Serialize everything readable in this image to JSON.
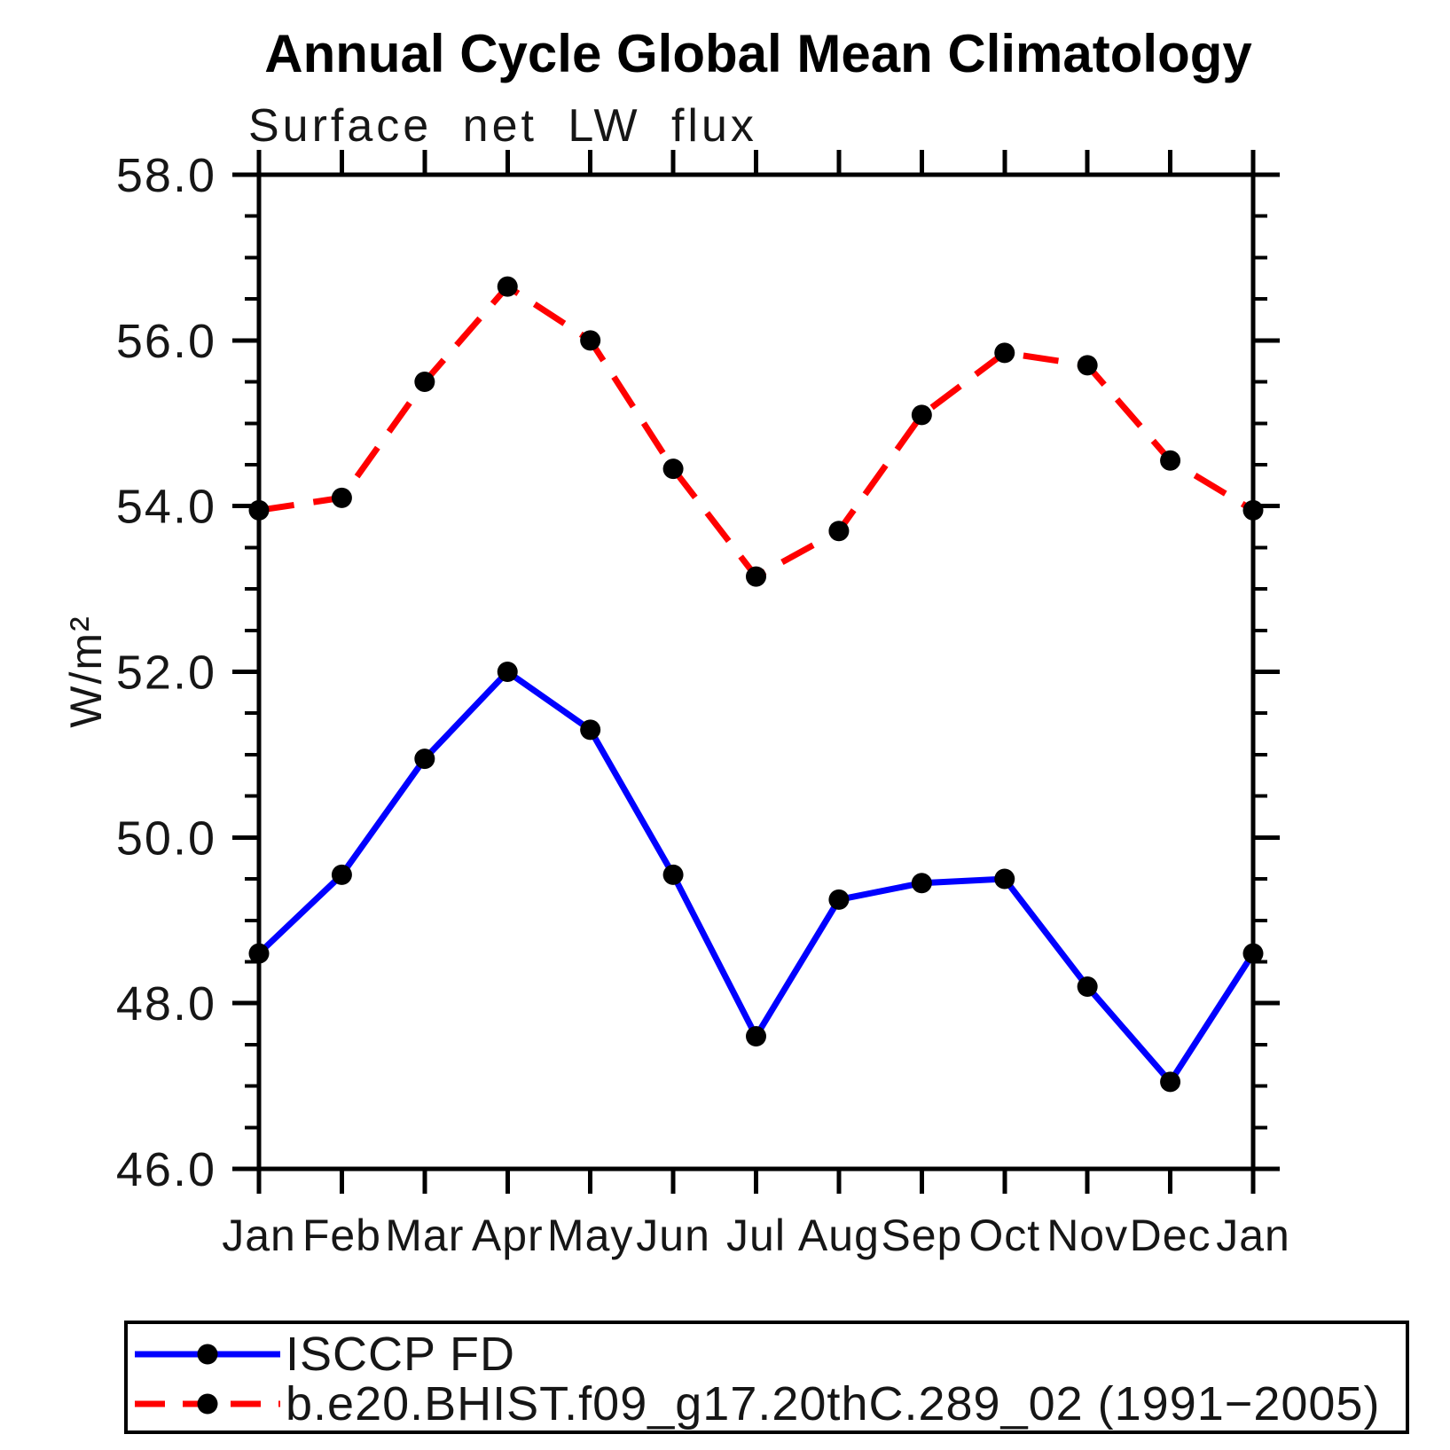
{
  "chart_data": {
    "type": "line",
    "title": "Annual Cycle Global Mean Climatology",
    "subtitle": "Surface net LW flux",
    "ylabel": "W/m²",
    "xlabel": "",
    "categories": [
      "Jan",
      "Feb",
      "Mar",
      "Apr",
      "May",
      "Jun",
      "Jul",
      "Aug",
      "Sep",
      "Oct",
      "Nov",
      "Dec",
      "Jan"
    ],
    "series": [
      {
        "name": "ISCCP FD",
        "color": "#0000ff",
        "dash": "solid",
        "values": [
          48.6,
          49.55,
          50.95,
          52.0,
          51.3,
          49.55,
          47.6,
          49.25,
          49.45,
          49.5,
          48.2,
          47.05,
          48.6
        ]
      },
      {
        "name": "b.e20.BHIST.f09_g17.20thC.289_02 (1991−2005)",
        "color": "#ff0000",
        "dash": "dashed",
        "values": [
          53.95,
          54.1,
          55.5,
          56.65,
          56.0,
          54.45,
          53.15,
          53.7,
          55.1,
          55.85,
          55.7,
          54.55,
          53.95
        ]
      }
    ],
    "ylim": [
      46.0,
      58.0
    ],
    "ytick_major_interval": 2.0,
    "ytick_minor_interval": 0.5,
    "ytick_label_format": "one_decimal",
    "grid": false,
    "marker": {
      "shape": "circle",
      "color": "#000000"
    },
    "legend_position": "bottom-left-box"
  },
  "colors": {
    "axis": "#000000",
    "background": "#ffffff"
  }
}
